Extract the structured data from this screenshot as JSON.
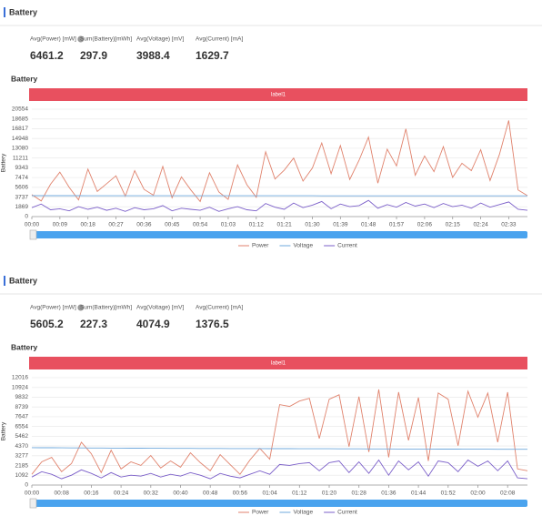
{
  "panels": [
    {
      "title": "Battery",
      "stats": [
        {
          "label": "Avg(Power) [mW]",
          "value": 6461.2
        },
        {
          "label": "Sum(Battery)[mWh]",
          "value": 297.9
        },
        {
          "label": "Avg(Voltage) [mV]",
          "value": 3988.4
        },
        {
          "label": "Avg(Current) [mA]",
          "value": 1629.7
        }
      ]
    },
    {
      "title": "Battery",
      "stats": [
        {
          "label": "Avg(Power) [mW]",
          "value": 5605.2
        },
        {
          "label": "Sum(Battery)[mWh]",
          "value": 227.3
        },
        {
          "label": "Avg(Voltage) [mV]",
          "value": 4074.9
        },
        {
          "label": "Avg(Current) [mA]",
          "value": 1376.5
        }
      ]
    }
  ],
  "chart_data": [
    {
      "type": "line",
      "title": "Battery",
      "banner": "label1",
      "y_label": "Battery",
      "grid": true,
      "ylim": [
        0,
        20554
      ],
      "yticks": [
        0,
        1869,
        3737,
        5606,
        7474,
        9343,
        11211,
        13080,
        14948,
        16817,
        18685,
        20554
      ],
      "categories": [
        "00:00",
        null,
        null,
        "00:09",
        null,
        null,
        "00:18",
        null,
        null,
        "00:27",
        null,
        null,
        "00:36",
        null,
        null,
        "00:45",
        null,
        null,
        "00:54",
        null,
        null,
        "01:03",
        null,
        null,
        "01:12",
        null,
        null,
        "01:21",
        null,
        null,
        "01:30",
        null,
        null,
        "01:39",
        null,
        null,
        "01:48",
        null,
        null,
        "01:57",
        null,
        null,
        "02:06",
        null,
        null,
        "02:15",
        null,
        null,
        "02:24",
        null,
        null,
        "02:33",
        null,
        null
      ],
      "series": [
        {
          "name": "Power",
          "color": "#e0826c",
          "values": [
            4200,
            3000,
            6200,
            8500,
            5600,
            3200,
            9100,
            4800,
            6300,
            7800,
            3900,
            8800,
            5200,
            4100,
            9600,
            3600,
            7600,
            5100,
            2900,
            8400,
            4700,
            3300,
            9900,
            6100,
            3700,
            12400,
            7200,
            8900,
            11200,
            6800,
            9300,
            14100,
            8200,
            13600,
            7100,
            10800,
            15200,
            6400,
            12900,
            9700,
            16800,
            7900,
            11600,
            8600,
            13400,
            7500,
            10200,
            8800,
            12800,
            6900,
            11900,
            18400,
            5100,
            4000
          ]
        },
        {
          "name": "Voltage",
          "color": "#6fa8dc",
          "values": [
            4012,
            4008,
            4004,
            4001,
            3999,
            3998,
            3996,
            3995,
            3994,
            3993,
            3992,
            3991,
            3990,
            3990,
            3989,
            3988,
            3988,
            3987,
            3987,
            3986,
            3986,
            3985,
            3985,
            3984,
            3984,
            3983,
            3983,
            3982,
            3982,
            3981,
            3981,
            3980,
            3980,
            3979,
            3979,
            3978,
            3978,
            3977,
            3977,
            3976,
            3976,
            3975,
            3975,
            3974,
            3974,
            3973,
            3973,
            3972,
            3972,
            3971,
            3971,
            3970,
            3970,
            3969
          ]
        },
        {
          "name": "Current",
          "color": "#7b5fc9",
          "values": [
            1700,
            2400,
            1300,
            1500,
            1100,
            1900,
            1400,
            1800,
            1200,
            1600,
            1000,
            1700,
            1300,
            1500,
            2100,
            1100,
            1600,
            1400,
            1200,
            1800,
            1000,
            1500,
            1900,
            1300,
            1100,
            2500,
            1800,
            1400,
            2600,
            1700,
            2200,
            2900,
            1500,
            2400,
            1900,
            2100,
            3100,
            1600,
            2300,
            1800,
            2700,
            2000,
            2400,
            1700,
            2500,
            1900,
            2200,
            1600,
            2600,
            1800,
            2300,
            2800,
            1400,
            1200
          ]
        }
      ]
    },
    {
      "type": "line",
      "title": "Battery",
      "banner": "label1",
      "y_label": "Battery",
      "grid": true,
      "ylim": [
        0,
        12016
      ],
      "yticks": [
        0,
        1092,
        2185,
        3277,
        4370,
        5462,
        6554,
        7647,
        8739,
        9832,
        10924,
        12016
      ],
      "categories": [
        "00:00",
        null,
        null,
        "00:08",
        null,
        null,
        "00:16",
        null,
        null,
        "00:24",
        null,
        null,
        "00:32",
        null,
        null,
        "00:40",
        null,
        null,
        "00:48",
        null,
        null,
        "00:56",
        null,
        null,
        "01:04",
        null,
        null,
        "01:12",
        null,
        null,
        "01:20",
        null,
        null,
        "01:28",
        null,
        null,
        "01:36",
        null,
        null,
        "01:44",
        null,
        null,
        "01:52",
        null,
        null,
        "02:00",
        null,
        null,
        "02:08",
        null,
        null
      ],
      "series": [
        {
          "name": "Power",
          "color": "#e0826c",
          "values": [
            1200,
            2600,
            3100,
            1500,
            2400,
            4800,
            3500,
            1400,
            3900,
            1800,
            2600,
            2200,
            3300,
            1900,
            2700,
            2000,
            3600,
            2500,
            1600,
            3400,
            2300,
            1200,
            2800,
            4100,
            2900,
            9000,
            8800,
            9400,
            9700,
            5200,
            9600,
            10100,
            4300,
            9900,
            3700,
            10700,
            3100,
            10400,
            5000,
            9800,
            2700,
            10300,
            9600,
            4400,
            10500,
            7600,
            10300,
            4800,
            10400,
            1800,
            1600
          ]
        },
        {
          "name": "Voltage",
          "color": "#6fa8dc",
          "values": [
            4190,
            4180,
            4172,
            4165,
            4158,
            4152,
            4146,
            4140,
            4135,
            4130,
            4125,
            4120,
            4116,
            4112,
            4108,
            4104,
            4100,
            4097,
            4094,
            4091,
            4088,
            4085,
            4082,
            4079,
            4076,
            4073,
            4070,
            4067,
            4064,
            4061,
            4058,
            4055,
            4052,
            4049,
            4046,
            4043,
            4040,
            4037,
            4034,
            4031,
            4028,
            4025,
            4022,
            4019,
            4016,
            4013,
            4010,
            4007,
            4004,
            4001,
            3998
          ]
        },
        {
          "name": "Current",
          "color": "#7b5fc9",
          "values": [
            900,
            1500,
            1200,
            700,
            1100,
            1700,
            1300,
            800,
            1400,
            900,
            1100,
            1000,
            1300,
            900,
            1200,
            1000,
            1400,
            1100,
            700,
            1300,
            1000,
            800,
            1200,
            1600,
            1200,
            2300,
            2200,
            2400,
            2500,
            1600,
            2500,
            2700,
            1400,
            2600,
            1300,
            2800,
            1100,
            2700,
            1700,
            2600,
            1000,
            2700,
            2500,
            1500,
            2800,
            2100,
            2700,
            1600,
            2700,
            800,
            700
          ]
        }
      ]
    }
  ]
}
